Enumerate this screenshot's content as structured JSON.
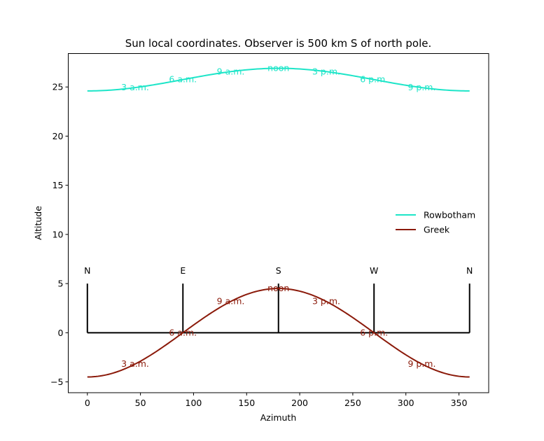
{
  "chart_data": {
    "type": "line",
    "title": "Sun local coordinates. Observer is 500 km S of north pole.",
    "xlabel": "Azimuth",
    "ylabel": "Altitude",
    "xlim": [
      -18,
      378
    ],
    "ylim": [
      -6.1,
      28.4
    ],
    "xticks": [
      0,
      50,
      100,
      150,
      200,
      250,
      300,
      350
    ],
    "yticks": [
      -5,
      0,
      5,
      10,
      15,
      20,
      25
    ],
    "ytick_labels": [
      "−5",
      "0",
      "5",
      "10",
      "15",
      "20",
      "25"
    ],
    "grid": false,
    "legend_position": "center-right",
    "series": [
      {
        "name": "Rowbotham",
        "color": "#1de5c8",
        "model": "cosine",
        "azimuth_range": [
          0,
          360
        ],
        "min_altitude": 24.6,
        "max_altitude": 26.9,
        "annotations": [
          {
            "label": "3 a.m.",
            "azimuth": 45
          },
          {
            "label": "6 a.m.",
            "azimuth": 90
          },
          {
            "label": "9 a.m.",
            "azimuth": 135
          },
          {
            "label": "noon",
            "azimuth": 180
          },
          {
            "label": "3 p.m.",
            "azimuth": 225
          },
          {
            "label": "6 p.m.",
            "azimuth": 270
          },
          {
            "label": "9 p.m.",
            "azimuth": 315
          }
        ]
      },
      {
        "name": "Greek",
        "color": "#8b1a0a",
        "model": "cosine",
        "azimuth_range": [
          0,
          360
        ],
        "min_altitude": -4.5,
        "max_altitude": 4.5,
        "annotations": [
          {
            "label": "3 a.m.",
            "azimuth": 45
          },
          {
            "label": "6 a.m.",
            "azimuth": 90
          },
          {
            "label": "9 a.m.",
            "azimuth": 135
          },
          {
            "label": "noon",
            "azimuth": 180
          },
          {
            "label": "3 p.m.",
            "azimuth": 225
          },
          {
            "label": "6 p.m.",
            "azimuth": 270
          },
          {
            "label": "9 p.m.",
            "azimuth": 315
          }
        ]
      }
    ],
    "horizon": {
      "color": "#000000",
      "altitude": 0,
      "azimuth_range": [
        0,
        360
      ],
      "marker_height": 5,
      "markers": [
        {
          "label": "N",
          "azimuth": 0
        },
        {
          "label": "E",
          "azimuth": 90
        },
        {
          "label": "S",
          "azimuth": 180
        },
        {
          "label": "W",
          "azimuth": 270
        },
        {
          "label": "N",
          "azimuth": 360
        }
      ]
    }
  }
}
